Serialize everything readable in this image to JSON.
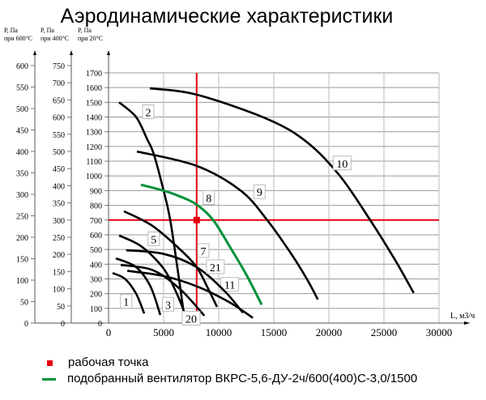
{
  "chart_data": {
    "type": "line",
    "title": "Аэродинамические характеристики",
    "xlabel": "L, м3/ч",
    "xlim": [
      0,
      30000
    ],
    "xticks": [
      0,
      5000,
      10000,
      15000,
      20000,
      25000,
      30000
    ],
    "ylim": [
      0,
      1700
    ],
    "grid": true,
    "y_axes": [
      {
        "label_line1": "P, Па",
        "label_line2": "при 600°С",
        "max": 600,
        "ticks": [
          0,
          50,
          100,
          150,
          200,
          250,
          300,
          350,
          400,
          450,
          500,
          550,
          600
        ]
      },
      {
        "label_line1": "P, Па",
        "label_line2": "при 400°С",
        "max": 750,
        "ticks": [
          0,
          50,
          100,
          150,
          200,
          250,
          300,
          350,
          400,
          450,
          500,
          550,
          600,
          650,
          700,
          750
        ]
      },
      {
        "label_line1": "P, Па",
        "label_line2": "при 20°С",
        "max": 1700,
        "ticks": [
          0,
          100,
          200,
          300,
          400,
          500,
          600,
          700,
          800,
          900,
          1000,
          1100,
          1200,
          1300,
          1400,
          1500,
          1600,
          1700
        ]
      }
    ],
    "series": [
      {
        "name": "1",
        "color": "#000000",
        "label_at": [
          1600,
          145
        ],
        "points": [
          [
            370,
            340
          ],
          [
            1500,
            300
          ],
          [
            2500,
            200
          ],
          [
            3240,
            65
          ]
        ]
      },
      {
        "name": "2",
        "color": "#000000",
        "label_at": [
          3600,
          1433
        ],
        "points": [
          [
            960,
            1500
          ],
          [
            2500,
            1400
          ],
          [
            3500,
            1250
          ],
          [
            4100,
            1150
          ],
          [
            5000,
            900
          ],
          [
            5600,
            700
          ],
          [
            6300,
            350
          ],
          [
            6900,
            30
          ]
        ]
      },
      {
        "name": "3",
        "color": "#000000",
        "label_at": [
          5400,
          125
        ],
        "points": [
          [
            660,
            440
          ],
          [
            2500,
            380
          ],
          [
            3800,
            250
          ],
          [
            4700,
            55
          ]
        ]
      },
      {
        "name": "5",
        "color": "#000000",
        "label_at": [
          4100,
          570
        ],
        "points": [
          [
            960,
            595
          ],
          [
            3000,
            520
          ],
          [
            5000,
            370
          ],
          [
            6200,
            200
          ],
          [
            6900,
            70
          ]
        ]
      },
      {
        "name": "7",
        "color": "#000000",
        "label_at": [
          8600,
          490
        ],
        "points": [
          [
            1400,
            760
          ],
          [
            4000,
            660
          ],
          [
            6500,
            500
          ],
          [
            8000,
            380
          ],
          [
            9000,
            240
          ],
          [
            9850,
            110
          ]
        ]
      },
      {
        "name": "8",
        "color": "#00913a",
        "label_at": [
          9100,
          850
        ],
        "points": [
          [
            2940,
            940
          ],
          [
            5000,
            900
          ],
          [
            6500,
            860
          ],
          [
            8000,
            805
          ],
          [
            9500,
            700
          ],
          [
            11000,
            520
          ],
          [
            12500,
            330
          ],
          [
            13900,
            125
          ]
        ]
      },
      {
        "name": "9",
        "color": "#000000",
        "label_at": [
          13700,
          890
        ],
        "points": [
          [
            2570,
            1166
          ],
          [
            8000,
            1068
          ],
          [
            12000,
            900
          ],
          [
            14400,
            700
          ],
          [
            16500,
            480
          ],
          [
            18000,
            300
          ],
          [
            19000,
            160
          ]
        ]
      },
      {
        "name": "10",
        "color": "#000000",
        "label_at": [
          21200,
          1085
        ],
        "points": [
          [
            3750,
            1595
          ],
          [
            8000,
            1552
          ],
          [
            14400,
            1387
          ],
          [
            18000,
            1230
          ],
          [
            21000,
            1000
          ],
          [
            23750,
            700
          ],
          [
            26000,
            430
          ],
          [
            27700,
            205
          ]
        ]
      },
      {
        "name": "11",
        "color": "#000000",
        "label_at": [
          11000,
          260
        ],
        "points": [
          [
            1700,
            355
          ],
          [
            5000,
            320
          ],
          [
            8000,
            250
          ],
          [
            11000,
            140
          ],
          [
            13100,
            35
          ]
        ]
      },
      {
        "name": "20",
        "color": "#000000",
        "label_at": [
          7500,
          30
        ],
        "points": [
          [
            1100,
            395
          ],
          [
            4000,
            360
          ],
          [
            6500,
            230
          ],
          [
            8700,
            50
          ]
        ]
      },
      {
        "name": "21",
        "color": "#000000",
        "label_at": [
          9700,
          380
        ],
        "points": [
          [
            1600,
            495
          ],
          [
            5000,
            470
          ],
          [
            8000,
            380
          ],
          [
            10500,
            220
          ],
          [
            12200,
            70
          ]
        ]
      }
    ],
    "operating_point": {
      "flow": 8000,
      "pressure": 700,
      "color": "#e3000f"
    }
  },
  "legend": {
    "operating_point": "рабочая точка",
    "selected_fan": "подобранный вентилятор ВКРС-5,6-ДУ-2ч/600(400)С-3,0/1500"
  }
}
